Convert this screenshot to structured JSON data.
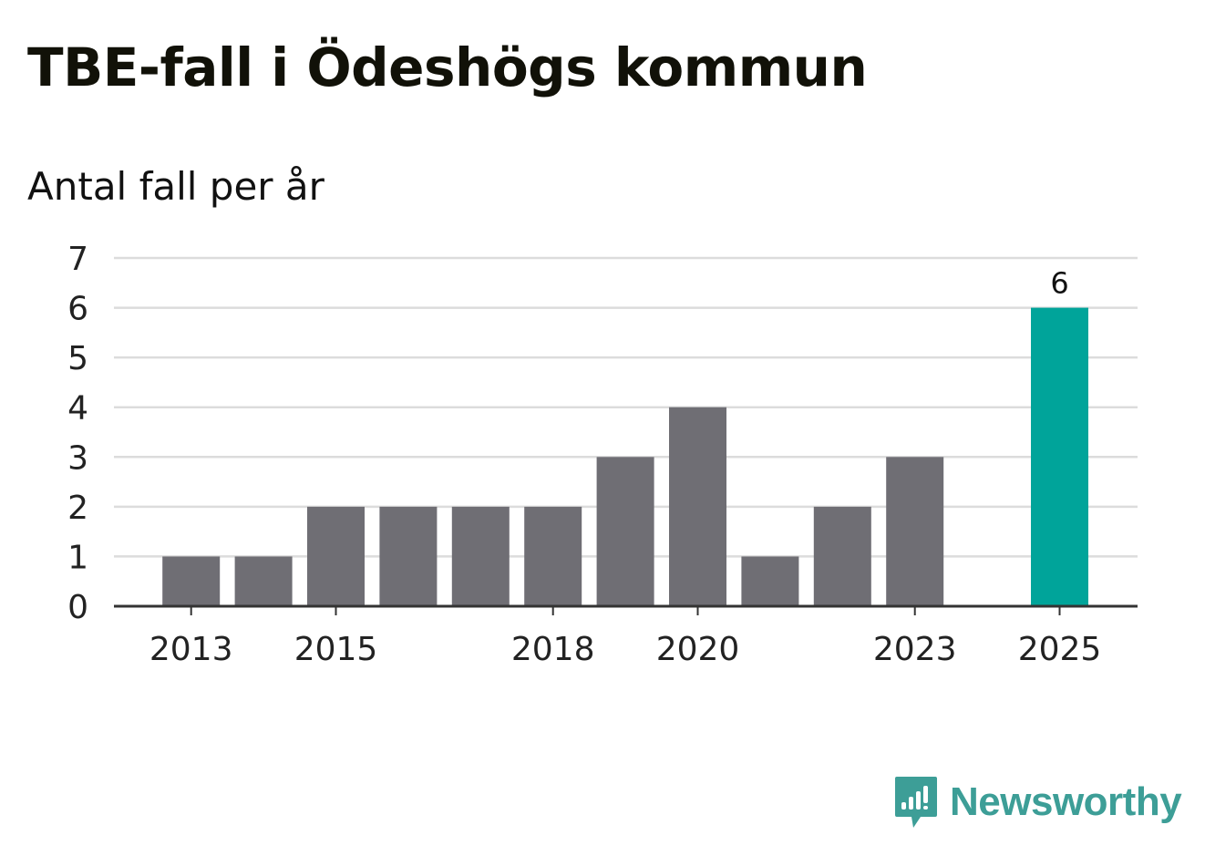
{
  "header": {
    "title": "TBE-fall i Ödeshögs kommun",
    "subtitle": "Antal fall per år"
  },
  "chart_data": {
    "type": "bar",
    "title": "TBE-fall i Ödeshögs kommun",
    "subtitle": "Antal fall per år",
    "xlabel": "",
    "ylabel": "Antal fall per år",
    "categories": [
      "2013",
      "2014",
      "2015",
      "2016",
      "2017",
      "2018",
      "2019",
      "2020",
      "2021",
      "2022",
      "2023",
      "2024",
      "2025"
    ],
    "values": [
      1,
      1,
      2,
      2,
      2,
      2,
      3,
      4,
      1,
      2,
      3,
      0,
      6
    ],
    "highlight_category": "2025",
    "value_labels": [
      {
        "category": "2025",
        "label": "6"
      }
    ],
    "x_tick_labels": [
      "2013",
      "2015",
      "2018",
      "2020",
      "2023",
      "2025"
    ],
    "y_ticks": [
      0,
      1,
      2,
      3,
      4,
      5,
      6,
      7
    ],
    "ylim": [
      0,
      7
    ],
    "grid": true,
    "legend": "none",
    "colors": {
      "bar": "#6f6e74",
      "highlight": "#00a49a",
      "grid": "#dcdcdc",
      "axis": "#333333"
    }
  },
  "brand": {
    "name": "Newsworthy",
    "icon": "newsworthy-logo-icon",
    "color": "#3d9e97"
  }
}
